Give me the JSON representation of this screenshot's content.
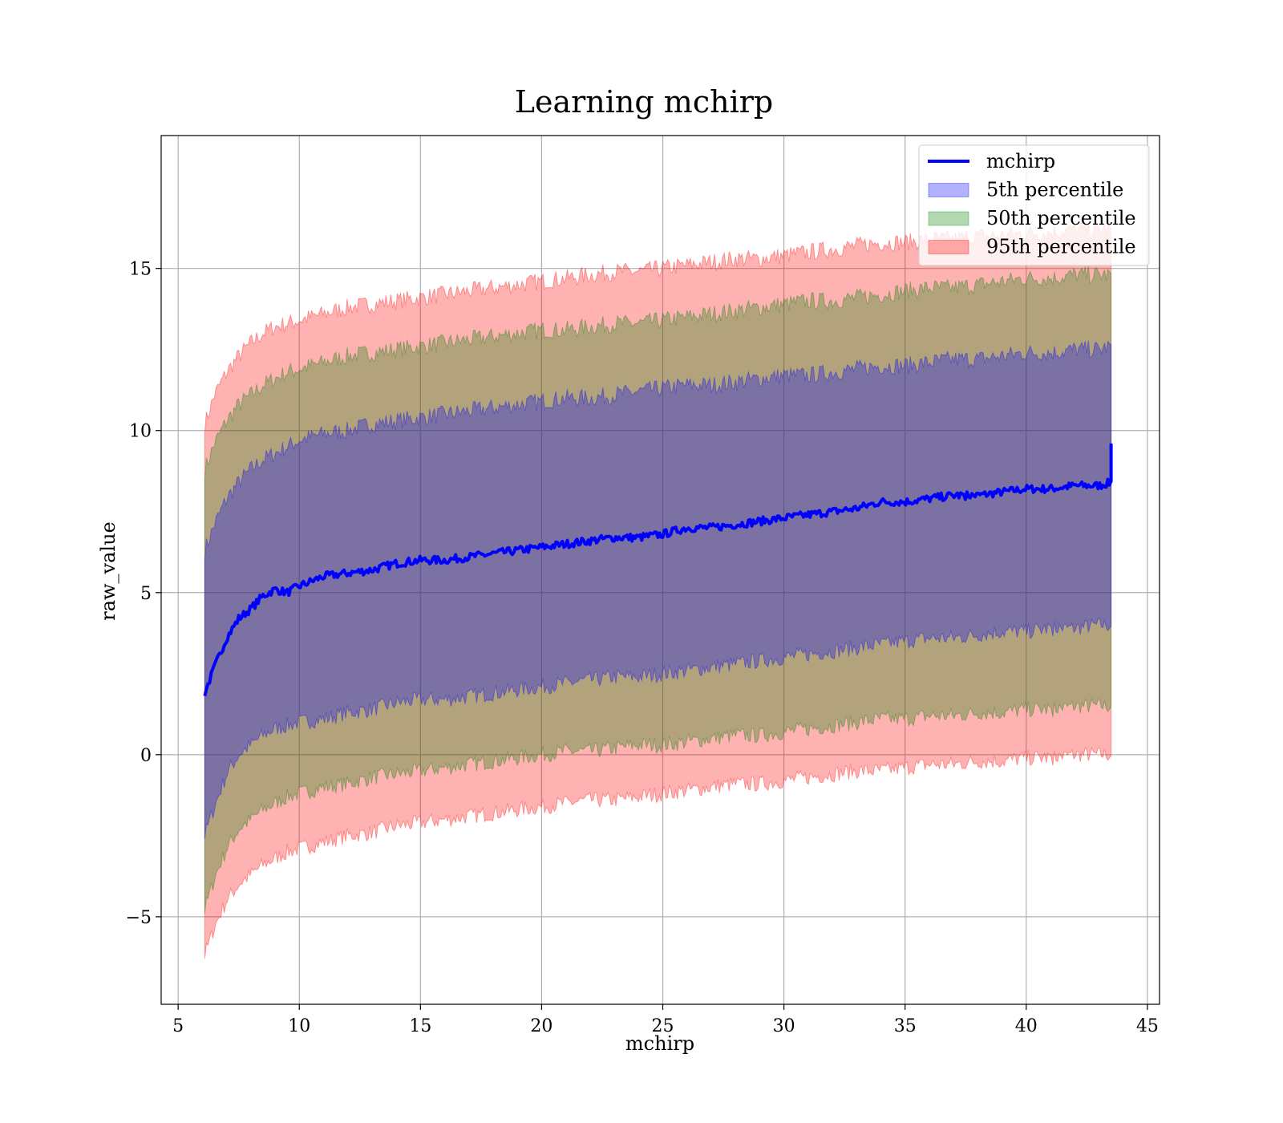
{
  "chart_data": {
    "type": "area",
    "title": "Learning mchirp",
    "xlabel": "mchirp",
    "ylabel": "raw_value",
    "xlim": [
      4.3,
      45.5
    ],
    "ylim": [
      -7.7,
      19.1
    ],
    "xticks": [
      5,
      10,
      15,
      20,
      25,
      30,
      35,
      40,
      45
    ],
    "yticks": [
      -5,
      0,
      5,
      10,
      15
    ],
    "xtick_labels": [
      "5",
      "10",
      "15",
      "20",
      "25",
      "30",
      "35",
      "40",
      "45"
    ],
    "ytick_labels": [
      "−5",
      "0",
      "5",
      "10",
      "15"
    ],
    "grid": true,
    "legend_position": "top-right",
    "x": [
      6.1,
      6.5,
      7,
      7.5,
      8,
      8.5,
      9,
      9.5,
      10,
      11,
      12,
      13,
      14,
      15,
      16,
      17,
      18,
      19,
      20,
      21,
      22,
      23,
      24,
      25,
      26,
      27,
      28,
      29,
      30,
      31,
      32,
      33,
      34,
      35,
      36,
      37,
      38,
      39,
      40,
      41,
      42,
      43,
      43.5
    ],
    "series": [
      {
        "name": "mchirp",
        "type": "line",
        "color": "#0000ff",
        "values": [
          1.9,
          2.7,
          3.6,
          4.2,
          4.5,
          4.9,
          5.1,
          5.0,
          5.2,
          5.5,
          5.6,
          5.7,
          5.9,
          6.0,
          6.0,
          6.1,
          6.2,
          6.3,
          6.4,
          6.5,
          6.6,
          6.7,
          6.7,
          6.8,
          7.0,
          7.0,
          7.1,
          7.2,
          7.3,
          7.4,
          7.5,
          7.6,
          7.8,
          7.8,
          7.9,
          8.0,
          8.0,
          8.1,
          8.2,
          8.2,
          8.3,
          8.3,
          8.4
        ]
      },
      {
        "name": "5th percentile",
        "type": "band",
        "color": "#0000ff",
        "lower": [
          -2.5,
          -1.6,
          -0.6,
          0.0,
          0.3,
          0.6,
          0.8,
          0.9,
          1.0,
          1.1,
          1.3,
          1.4,
          1.6,
          1.7,
          1.7,
          1.8,
          1.9,
          2.0,
          2.1,
          2.2,
          2.3,
          2.4,
          2.4,
          2.5,
          2.6,
          2.7,
          2.8,
          2.9,
          3.0,
          3.1,
          3.2,
          3.3,
          3.4,
          3.5,
          3.6,
          3.6,
          3.7,
          3.8,
          3.8,
          3.9,
          3.9,
          4.0,
          4.0
        ],
        "upper": [
          6.3,
          7.1,
          7.9,
          8.4,
          8.8,
          9.1,
          9.3,
          9.5,
          9.7,
          9.9,
          10.0,
          10.2,
          10.3,
          10.4,
          10.5,
          10.6,
          10.7,
          10.8,
          10.9,
          11.0,
          11.0,
          11.1,
          11.2,
          11.3,
          11.4,
          11.4,
          11.5,
          11.6,
          11.7,
          11.7,
          11.8,
          11.9,
          12.0,
          12.0,
          12.1,
          12.2,
          12.2,
          12.3,
          12.4,
          12.4,
          12.5,
          12.5,
          12.6
        ]
      },
      {
        "name": "50th percentile",
        "type": "band",
        "color": "#008000",
        "lower": [
          -4.8,
          -3.8,
          -2.9,
          -2.3,
          -2.0,
          -1.7,
          -1.5,
          -1.3,
          -1.2,
          -1.0,
          -0.9,
          -0.7,
          -0.6,
          -0.5,
          -0.4,
          -0.3,
          -0.2,
          -0.1,
          0.0,
          0.1,
          0.1,
          0.2,
          0.3,
          0.3,
          0.4,
          0.5,
          0.6,
          0.6,
          0.7,
          0.8,
          0.9,
          1.0,
          1.1,
          1.1,
          1.2,
          1.2,
          1.3,
          1.3,
          1.4,
          1.4,
          1.5,
          1.5,
          1.5
        ],
        "upper": [
          8.8,
          9.6,
          10.3,
          10.8,
          11.1,
          11.4,
          11.6,
          11.8,
          11.9,
          12.1,
          12.3,
          12.4,
          12.5,
          12.6,
          12.7,
          12.8,
          12.9,
          13.0,
          13.1,
          13.1,
          13.2,
          13.3,
          13.3,
          13.4,
          13.5,
          13.6,
          13.7,
          13.8,
          13.9,
          14.0,
          14.0,
          14.1,
          14.2,
          14.3,
          14.4,
          14.4,
          14.5,
          14.6,
          14.7,
          14.7,
          14.8,
          14.8,
          14.8
        ]
      },
      {
        "name": "95th percentile",
        "type": "band",
        "color": "#ff0000",
        "lower": [
          -6.2,
          -5.3,
          -4.5,
          -4.0,
          -3.7,
          -3.4,
          -3.2,
          -3.0,
          -2.9,
          -2.7,
          -2.5,
          -2.4,
          -2.2,
          -2.1,
          -2.0,
          -1.9,
          -1.8,
          -1.7,
          -1.6,
          -1.5,
          -1.4,
          -1.4,
          -1.3,
          -1.2,
          -1.1,
          -1.0,
          -0.9,
          -0.9,
          -0.8,
          -0.7,
          -0.6,
          -0.5,
          -0.5,
          -0.4,
          -0.3,
          -0.3,
          -0.2,
          -0.2,
          -0.1,
          -0.1,
          0.0,
          0.0,
          0.0
        ],
        "upper": [
          10.2,
          11.1,
          11.8,
          12.3,
          12.7,
          13.0,
          13.2,
          13.3,
          13.4,
          13.6,
          13.8,
          13.9,
          14.0,
          14.1,
          14.2,
          14.3,
          14.4,
          14.5,
          14.6,
          14.7,
          14.8,
          14.9,
          14.9,
          15.0,
          15.1,
          15.2,
          15.3,
          15.3,
          15.4,
          15.5,
          15.6,
          15.7,
          15.8,
          15.8,
          15.9,
          15.9,
          16.0,
          16.0,
          16.1,
          16.1,
          16.2,
          16.2,
          16.2
        ]
      }
    ],
    "legend": [
      "mchirp",
      "5th percentile",
      "50th percentile",
      "95th percentile"
    ]
  }
}
